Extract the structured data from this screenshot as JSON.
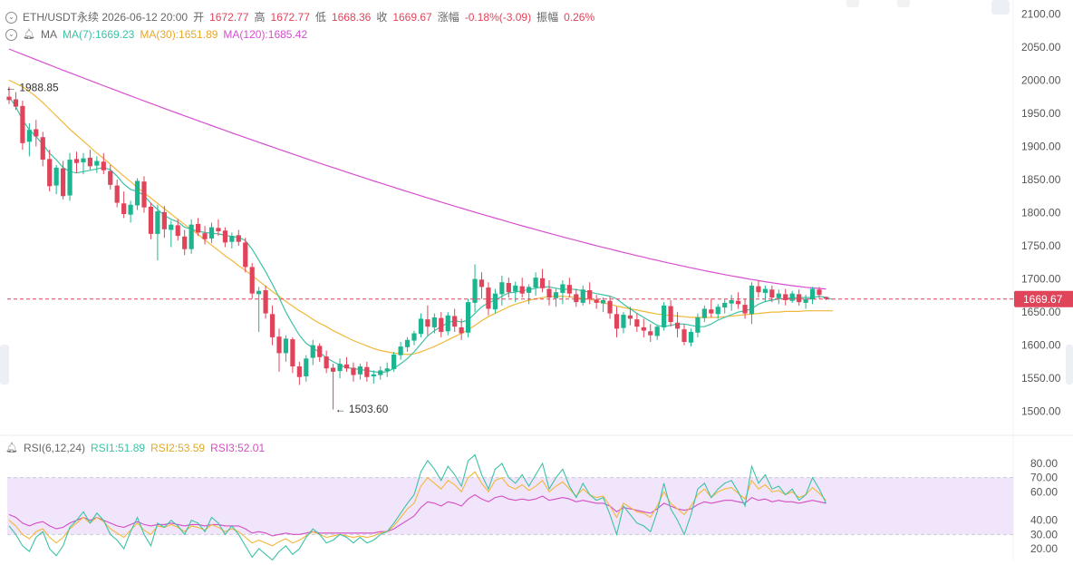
{
  "header": {
    "symbol_time": "ETH/USDT永续  2026-06-12 20:00",
    "open_label": "开",
    "open": "1672.77",
    "high_label": "高",
    "high": "1672.77",
    "low_label": "低",
    "low": "1668.36",
    "close_label": "收",
    "close": "1669.67",
    "change_label": "涨幅",
    "change": "-0.18%(-3.09)",
    "amp_label": "振幅",
    "amp": "0.26%"
  },
  "ma_legend": {
    "name": "MA",
    "ma7": "MA(7):1669.23",
    "ma30": "MA(30):1651.89",
    "ma120": "MA(120):1685.42"
  },
  "rsi_legend": {
    "name": "RSI(6,12,24)",
    "rsi1": "RSI1:51.89",
    "rsi2": "RSI2:53.59",
    "rsi3": "RSI3:52.01"
  },
  "colors": {
    "up": "#1bb68f",
    "down": "#e0445a",
    "ma7": "#3cc2a5",
    "ma30": "#f1b83a",
    "ma120": "#d74ed0",
    "rsi1": "#3cc2a5",
    "rsi2": "#f1b83a",
    "rsi3": "#d24fc4",
    "rsi_band": "#f1e5fb",
    "price_tag": "#e0445a"
  },
  "chart_data": [
    {
      "type": "candlestick",
      "price_axis": {
        "ticks": [
          1500,
          1550,
          1600,
          1650,
          1700,
          1750,
          1800,
          1850,
          1900,
          1950,
          2000,
          2050,
          2100
        ]
      },
      "ylim": [
        1475,
        2110
      ],
      "last_price": "1669.67",
      "annotations": {
        "high": "1988.85",
        "low": "1503.60"
      },
      "ohlc": [
        [
          1975,
          1990,
          1964,
          1970
        ],
        [
          1971,
          1982,
          1955,
          1960
        ],
        [
          1961,
          1969,
          1895,
          1905
        ],
        [
          1907,
          1935,
          1885,
          1925
        ],
        [
          1926,
          1940,
          1900,
          1915
        ],
        [
          1914,
          1922,
          1870,
          1880
        ],
        [
          1881,
          1895,
          1832,
          1840
        ],
        [
          1841,
          1872,
          1828,
          1868
        ],
        [
          1867,
          1878,
          1820,
          1825
        ],
        [
          1826,
          1890,
          1818,
          1880
        ],
        [
          1881,
          1892,
          1860,
          1875
        ],
        [
          1876,
          1890,
          1858,
          1882
        ],
        [
          1883,
          1895,
          1865,
          1870
        ],
        [
          1871,
          1885,
          1860,
          1878
        ],
        [
          1877,
          1890,
          1858,
          1864
        ],
        [
          1863,
          1872,
          1835,
          1842
        ],
        [
          1841,
          1850,
          1808,
          1815
        ],
        [
          1814,
          1832,
          1792,
          1798
        ],
        [
          1797,
          1818,
          1785,
          1812
        ],
        [
          1811,
          1852,
          1804,
          1848
        ],
        [
          1847,
          1855,
          1800,
          1808
        ],
        [
          1809,
          1815,
          1760,
          1768
        ],
        [
          1768,
          1812,
          1728,
          1802
        ],
        [
          1801,
          1810,
          1762,
          1775
        ],
        [
          1774,
          1788,
          1748,
          1782
        ],
        [
          1781,
          1790,
          1758,
          1765
        ],
        [
          1764,
          1774,
          1736,
          1745
        ],
        [
          1745,
          1790,
          1738,
          1782
        ],
        [
          1783,
          1792,
          1765,
          1770
        ],
        [
          1769,
          1780,
          1752,
          1760
        ],
        [
          1761,
          1785,
          1754,
          1778
        ],
        [
          1777,
          1790,
          1765,
          1772
        ],
        [
          1773,
          1778,
          1748,
          1755
        ],
        [
          1756,
          1770,
          1746,
          1765
        ],
        [
          1766,
          1774,
          1750,
          1756
        ],
        [
          1755,
          1762,
          1710,
          1718
        ],
        [
          1718,
          1724,
          1670,
          1678
        ],
        [
          1677,
          1688,
          1620,
          1682
        ],
        [
          1683,
          1690,
          1640,
          1648
        ],
        [
          1647,
          1660,
          1600,
          1612
        ],
        [
          1613,
          1625,
          1560,
          1588
        ],
        [
          1588,
          1615,
          1575,
          1610
        ],
        [
          1609,
          1612,
          1558,
          1568
        ],
        [
          1568,
          1575,
          1540,
          1552
        ],
        [
          1553,
          1585,
          1545,
          1580
        ],
        [
          1581,
          1608,
          1570,
          1600
        ],
        [
          1599,
          1603,
          1575,
          1582
        ],
        [
          1583,
          1592,
          1558,
          1565
        ],
        [
          1566,
          1572,
          1503,
          1560
        ],
        [
          1561,
          1580,
          1550,
          1572
        ],
        [
          1571,
          1582,
          1560,
          1565
        ],
        [
          1566,
          1574,
          1545,
          1555
        ],
        [
          1556,
          1572,
          1548,
          1568
        ],
        [
          1567,
          1575,
          1545,
          1552
        ],
        [
          1553,
          1562,
          1542,
          1556
        ],
        [
          1555,
          1568,
          1548,
          1562
        ],
        [
          1561,
          1574,
          1552,
          1565
        ],
        [
          1564,
          1590,
          1560,
          1586
        ],
        [
          1585,
          1605,
          1578,
          1598
        ],
        [
          1597,
          1612,
          1590,
          1608
        ],
        [
          1607,
          1622,
          1600,
          1618
        ],
        [
          1617,
          1648,
          1612,
          1640
        ],
        [
          1639,
          1660,
          1615,
          1628
        ],
        [
          1627,
          1648,
          1618,
          1642
        ],
        [
          1641,
          1650,
          1612,
          1620
        ],
        [
          1621,
          1650,
          1615,
          1645
        ],
        [
          1644,
          1655,
          1620,
          1628
        ],
        [
          1627,
          1640,
          1608,
          1618
        ],
        [
          1619,
          1670,
          1612,
          1665
        ],
        [
          1664,
          1722,
          1650,
          1700
        ],
        [
          1699,
          1710,
          1670,
          1688
        ],
        [
          1687,
          1695,
          1645,
          1655
        ],
        [
          1654,
          1685,
          1648,
          1678
        ],
        [
          1677,
          1705,
          1660,
          1695
        ],
        [
          1694,
          1702,
          1672,
          1680
        ],
        [
          1681,
          1696,
          1665,
          1690
        ],
        [
          1689,
          1702,
          1672,
          1678
        ],
        [
          1679,
          1692,
          1662,
          1688
        ],
        [
          1687,
          1710,
          1675,
          1702
        ],
        [
          1701,
          1715,
          1680,
          1686
        ],
        [
          1685,
          1698,
          1660,
          1672
        ],
        [
          1671,
          1685,
          1658,
          1680
        ],
        [
          1679,
          1698,
          1662,
          1692
        ],
        [
          1691,
          1702,
          1672,
          1678
        ],
        [
          1677,
          1685,
          1658,
          1665
        ],
        [
          1664,
          1690,
          1660,
          1684
        ],
        [
          1683,
          1695,
          1662,
          1670
        ],
        [
          1669,
          1676,
          1655,
          1664
        ],
        [
          1663,
          1672,
          1650,
          1668
        ],
        [
          1667,
          1674,
          1640,
          1648
        ],
        [
          1647,
          1658,
          1612,
          1625
        ],
        [
          1626,
          1650,
          1618,
          1646
        ],
        [
          1645,
          1658,
          1630,
          1640
        ],
        [
          1639,
          1648,
          1620,
          1628
        ],
        [
          1627,
          1640,
          1612,
          1622
        ],
        [
          1621,
          1632,
          1605,
          1615
        ],
        [
          1614,
          1630,
          1608,
          1628
        ],
        [
          1627,
          1665,
          1622,
          1660
        ],
        [
          1659,
          1668,
          1628,
          1635
        ],
        [
          1634,
          1650,
          1612,
          1625
        ],
        [
          1624,
          1632,
          1600,
          1605
        ],
        [
          1604,
          1625,
          1598,
          1620
        ],
        [
          1619,
          1648,
          1612,
          1642
        ],
        [
          1641,
          1660,
          1635,
          1655
        ],
        [
          1654,
          1670,
          1642,
          1648
        ],
        [
          1647,
          1662,
          1640,
          1658
        ],
        [
          1657,
          1670,
          1648,
          1664
        ],
        [
          1663,
          1676,
          1652,
          1668
        ],
        [
          1667,
          1680,
          1655,
          1662
        ],
        [
          1661,
          1670,
          1640,
          1648
        ],
        [
          1647,
          1695,
          1632,
          1690
        ],
        [
          1689,
          1698,
          1672,
          1680
        ],
        [
          1679,
          1690,
          1665,
          1685
        ],
        [
          1684,
          1690,
          1665,
          1672
        ],
        [
          1671,
          1684,
          1662,
          1678
        ],
        [
          1677,
          1685,
          1660,
          1668
        ],
        [
          1667,
          1682,
          1664,
          1678
        ],
        [
          1677,
          1684,
          1660,
          1665
        ],
        [
          1664,
          1676,
          1655,
          1670
        ],
        [
          1669,
          1688,
          1662,
          1685
        ],
        [
          1684,
          1688,
          1670,
          1676
        ],
        [
          1673,
          1673,
          1668,
          1670
        ]
      ],
      "ma7": [
        1975,
        1960,
        1940,
        1925,
        1915,
        1903,
        1890,
        1880,
        1868,
        1862,
        1860,
        1862,
        1864,
        1866,
        1868,
        1865,
        1855,
        1843,
        1835,
        1832,
        1826,
        1814,
        1805,
        1796,
        1790,
        1786,
        1778,
        1775,
        1772,
        1770,
        1769,
        1768,
        1766,
        1764,
        1763,
        1758,
        1745,
        1728,
        1711,
        1692,
        1672,
        1650,
        1632,
        1615,
        1603,
        1596,
        1589,
        1581,
        1575,
        1570,
        1566,
        1565,
        1563,
        1562,
        1560,
        1559,
        1560,
        1565,
        1572,
        1580,
        1590,
        1602,
        1614,
        1622,
        1628,
        1634,
        1637,
        1635,
        1638,
        1648,
        1658,
        1664,
        1668,
        1674,
        1679,
        1680,
        1682,
        1684,
        1686,
        1688,
        1688,
        1686,
        1684,
        1685,
        1684,
        1682,
        1680,
        1678,
        1676,
        1674,
        1670,
        1662,
        1655,
        1648,
        1642,
        1636,
        1630,
        1628,
        1630,
        1632,
        1632,
        1630,
        1628,
        1628,
        1632,
        1638,
        1642,
        1646,
        1650,
        1652,
        1655,
        1662,
        1666,
        1668,
        1670,
        1670,
        1672,
        1672,
        1672,
        1672,
        1674,
        1672,
        1669
      ],
      "ma30": [
        2000,
        1995,
        1990,
        1983,
        1975,
        1966,
        1956,
        1946,
        1936,
        1926,
        1917,
        1908,
        1899,
        1890,
        1882,
        1873,
        1864,
        1855,
        1847,
        1838,
        1830,
        1822,
        1814,
        1806,
        1798,
        1790,
        1782,
        1775,
        1767,
        1759,
        1751,
        1743,
        1735,
        1728,
        1720,
        1713,
        1705,
        1697,
        1689,
        1681,
        1674,
        1666,
        1659,
        1652,
        1646,
        1639,
        1633,
        1628,
        1622,
        1617,
        1612,
        1607,
        1603,
        1599,
        1595,
        1592,
        1590,
        1588,
        1587,
        1586,
        1587,
        1590,
        1594,
        1598,
        1603,
        1608,
        1613,
        1618,
        1623,
        1630,
        1637,
        1643,
        1648,
        1653,
        1658,
        1662,
        1665,
        1668,
        1670,
        1672,
        1673,
        1674,
        1674,
        1673,
        1672,
        1671,
        1669,
        1667,
        1664,
        1662,
        1659,
        1657,
        1655,
        1653,
        1651,
        1649,
        1647,
        1646,
        1645,
        1644,
        1643,
        1642,
        1642,
        1642,
        1642,
        1642,
        1643,
        1644,
        1645,
        1646,
        1647,
        1648,
        1649,
        1650,
        1650,
        1651,
        1651,
        1651,
        1652,
        1652,
        1652,
        1652,
        1652
      ],
      "ma120_endpoints": [
        2047,
        1685
      ],
      "rsi_axis": {
        "ticks": [
          20,
          30,
          40,
          60,
          70,
          80
        ]
      },
      "rsi_band": [
        30,
        70
      ],
      "rsi1": [
        36,
        30,
        22,
        18,
        28,
        32,
        20,
        15,
        22,
        35,
        40,
        46,
        38,
        45,
        40,
        30,
        26,
        20,
        32,
        42,
        30,
        22,
        38,
        35,
        40,
        36,
        30,
        40,
        38,
        32,
        42,
        38,
        30,
        36,
        30,
        22,
        14,
        20,
        16,
        12,
        18,
        22,
        16,
        20,
        28,
        34,
        30,
        24,
        26,
        30,
        28,
        24,
        28,
        24,
        26,
        30,
        32,
        38,
        45,
        52,
        58,
        74,
        82,
        76,
        68,
        78,
        72,
        64,
        82,
        86,
        72,
        62,
        76,
        80,
        70,
        66,
        72,
        64,
        72,
        80,
        62,
        70,
        76,
        64,
        56,
        66,
        58,
        54,
        56,
        44,
        30,
        50,
        44,
        38,
        36,
        32,
        46,
        66,
        48,
        40,
        30,
        44,
        62,
        66,
        56,
        62,
        66,
        68,
        60,
        50,
        78,
        66,
        72,
        62,
        64,
        58,
        62,
        54,
        58,
        70,
        62,
        52
      ],
      "rsi2": [
        40,
        36,
        30,
        27,
        32,
        34,
        28,
        24,
        28,
        34,
        38,
        42,
        38,
        42,
        39,
        34,
        31,
        28,
        33,
        38,
        33,
        30,
        36,
        35,
        37,
        35,
        32,
        36,
        35,
        33,
        37,
        35,
        32,
        34,
        32,
        28,
        24,
        26,
        24,
        22,
        25,
        27,
        24,
        26,
        29,
        32,
        30,
        28,
        29,
        30,
        29,
        28,
        29,
        28,
        29,
        31,
        32,
        36,
        42,
        48,
        52,
        64,
        70,
        66,
        62,
        68,
        65,
        60,
        70,
        74,
        66,
        60,
        68,
        70,
        64,
        62,
        65,
        61,
        64,
        68,
        60,
        64,
        67,
        62,
        57,
        62,
        58,
        56,
        57,
        50,
        42,
        52,
        49,
        46,
        45,
        42,
        50,
        60,
        52,
        48,
        44,
        50,
        58,
        62,
        56,
        60,
        62,
        63,
        59,
        55,
        68,
        62,
        65,
        60,
        61,
        58,
        60,
        56,
        58,
        63,
        59,
        54
      ],
      "rsi3": [
        44,
        42,
        38,
        36,
        38,
        39,
        36,
        34,
        35,
        38,
        40,
        42,
        40,
        42,
        40,
        38,
        36,
        35,
        37,
        39,
        37,
        36,
        37,
        37,
        38,
        37,
        36,
        37,
        37,
        36,
        37,
        37,
        36,
        36,
        36,
        34,
        31,
        32,
        31,
        29,
        30,
        31,
        30,
        30,
        31,
        32,
        31,
        31,
        31,
        31,
        31,
        31,
        31,
        31,
        31,
        32,
        32,
        34,
        37,
        40,
        43,
        49,
        53,
        52,
        50,
        53,
        52,
        50,
        55,
        58,
        55,
        53,
        56,
        57,
        55,
        54,
        55,
        54,
        55,
        57,
        54,
        55,
        56,
        55,
        53,
        54,
        53,
        52,
        52,
        50,
        46,
        49,
        48,
        47,
        46,
        45,
        48,
        52,
        50,
        48,
        47,
        48,
        51,
        53,
        52,
        53,
        54,
        54,
        53,
        52,
        56,
        54,
        55,
        53,
        54,
        53,
        53,
        52,
        53,
        54,
        53,
        52
      ]
    }
  ]
}
